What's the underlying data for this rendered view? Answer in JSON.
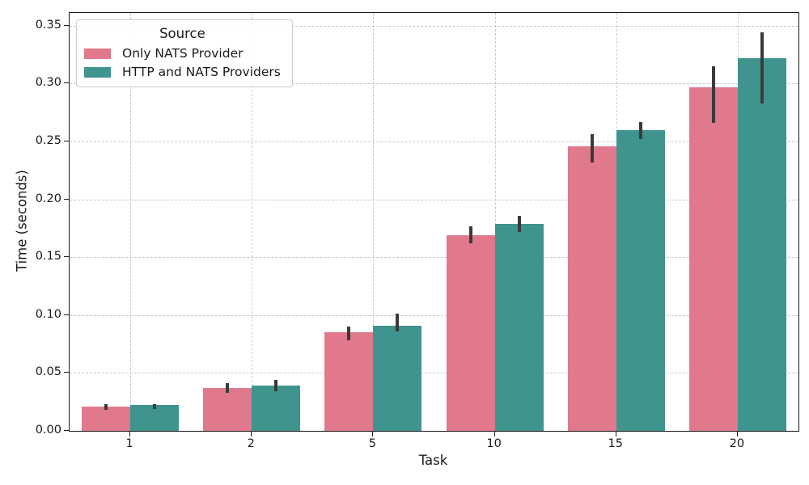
{
  "chart_data": {
    "type": "bar",
    "title": "",
    "xlabel": "Task",
    "ylabel": "Time (seconds)",
    "categories": [
      "1",
      "2",
      "5",
      "10",
      "15",
      "20"
    ],
    "series": [
      {
        "name": "Only NATS Provider",
        "color": "#e0798c",
        "values": [
          0.021,
          0.037,
          0.085,
          0.169,
          0.246,
          0.297
        ],
        "ci_low": [
          0.018,
          0.033,
          0.078,
          0.162,
          0.232,
          0.266
        ],
        "ci_high": [
          0.023,
          0.041,
          0.09,
          0.177,
          0.256,
          0.315
        ]
      },
      {
        "name": "HTTP and NATS Providers",
        "color": "#3f948e",
        "values": [
          0.022,
          0.039,
          0.091,
          0.179,
          0.26,
          0.322
        ],
        "ci_low": [
          0.019,
          0.034,
          0.086,
          0.172,
          0.252,
          0.283
        ],
        "ci_high": [
          0.023,
          0.044,
          0.101,
          0.186,
          0.267,
          0.344
        ]
      }
    ],
    "ylim": [
      0,
      0.361
    ],
    "yticks": [
      {
        "value": 0.0,
        "label": "0.00"
      },
      {
        "value": 0.05,
        "label": "0.05"
      },
      {
        "value": 0.1,
        "label": "0.10"
      },
      {
        "value": 0.15,
        "label": "0.15"
      },
      {
        "value": 0.2,
        "label": "0.20"
      },
      {
        "value": 0.25,
        "label": "0.25"
      },
      {
        "value": 0.3,
        "label": "0.30"
      },
      {
        "value": 0.35,
        "label": "0.35"
      }
    ],
    "legend_title": "Source",
    "legend_position": "upper-left",
    "grid": true,
    "grid_color": "#c9c9c9",
    "error_bar_color": "#3a3a3a",
    "spine_color": "#181818",
    "background_color": "#ffffff"
  }
}
